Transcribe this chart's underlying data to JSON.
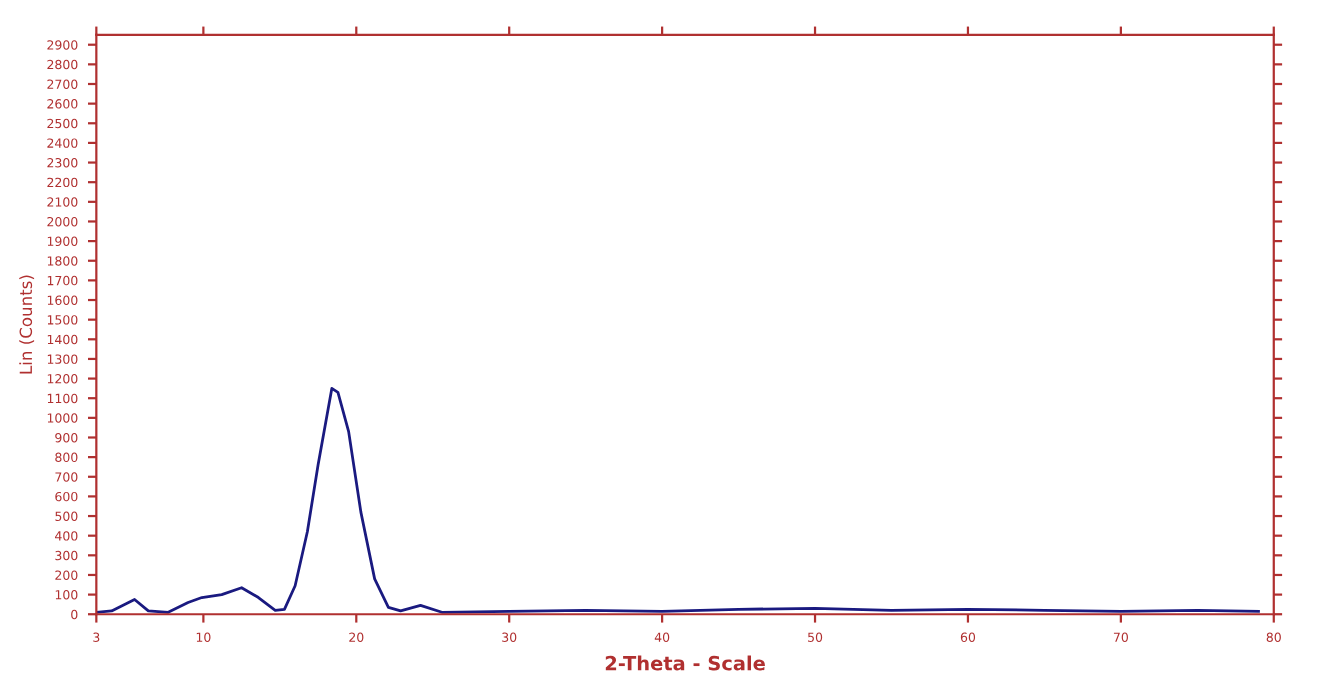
{
  "chart_data": {
    "type": "line",
    "xlabel": "2-Theta - Scale",
    "ylabel": "Lin (Counts)",
    "series": [
      {
        "color": "#1a1a80",
        "x": [
          3,
          4,
          5.5,
          6.4,
          7.7,
          9,
          9.9,
          11.2,
          12.5,
          13.6,
          14.7,
          15.3,
          16,
          16.8,
          17.5,
          18.4,
          18.8,
          19.5,
          20.3,
          21.2,
          22.1,
          22.9,
          24.2,
          25.6,
          30,
          35,
          40,
          45,
          50,
          55,
          60,
          65,
          70,
          75,
          79
        ],
        "values": [
          10,
          17,
          75,
          17,
          10,
          60,
          85,
          100,
          135,
          85,
          20,
          25,
          145,
          420,
          760,
          1150,
          1130,
          930,
          520,
          180,
          35,
          17,
          45,
          10,
          15,
          20,
          15,
          25,
          30,
          20,
          25,
          20,
          15,
          20,
          15
        ]
      }
    ],
    "xlim": [
      3,
      80
    ],
    "xticks": [
      3,
      10,
      20,
      30,
      40,
      50,
      60,
      70,
      80
    ],
    "ylim": [
      0,
      2950
    ],
    "yticks": [
      0,
      100,
      200,
      300,
      400,
      500,
      600,
      700,
      800,
      900,
      1000,
      1100,
      1200,
      1300,
      1400,
      1500,
      1600,
      1700,
      1800,
      1900,
      2000,
      2100,
      2200,
      2300,
      2400,
      2500,
      2600,
      2700,
      2800,
      2900
    ],
    "grid": false,
    "legend": false,
    "marker": "none",
    "line_style": "solid"
  }
}
